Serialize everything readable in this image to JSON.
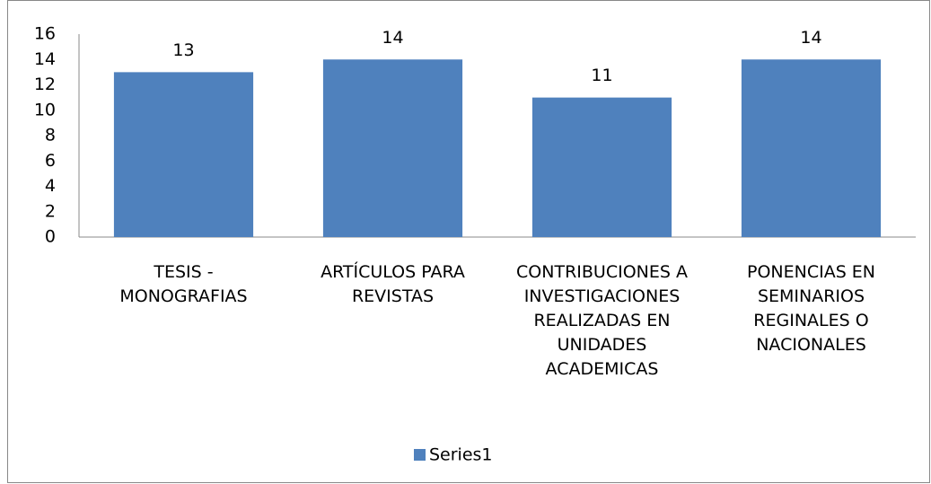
{
  "chart_data": {
    "type": "bar",
    "categories": [
      "TESIS - MONOGRAFIAS",
      "ARTÍCULOS PARA REVISTAS",
      "CONTRIBUCIONES A INVESTIGACIONES REALIZADAS EN UNIDADES ACADEMICAS",
      "PONENCIAS EN SEMINARIOS REGINALES O NACIONALES"
    ],
    "series": [
      {
        "name": "Series1",
        "color": "#4f81bd",
        "values": [
          13,
          14,
          11,
          14
        ]
      }
    ],
    "ylim": [
      0,
      16
    ],
    "yticks": [
      0,
      2,
      4,
      6,
      8,
      10,
      12,
      14,
      16
    ],
    "grid": false,
    "legend": "bottom"
  }
}
